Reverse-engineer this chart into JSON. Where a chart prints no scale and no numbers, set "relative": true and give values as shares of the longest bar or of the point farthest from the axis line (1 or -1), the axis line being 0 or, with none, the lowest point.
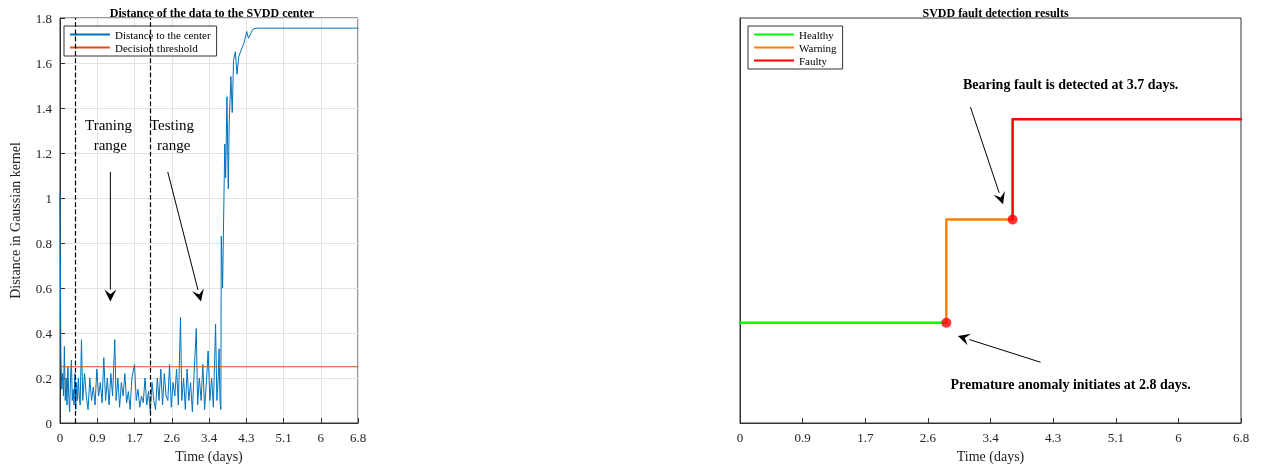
{
  "chart_data": [
    {
      "type": "line",
      "title": "Distance of the data to the SVDD center",
      "xlabel": "Time (days)",
      "ylabel": "Distance in Gaussian kernel",
      "series": [
        {
          "name": "Distance to the center",
          "color": "#0072bd",
          "x": [
            0,
            0.02,
            0.04,
            0.06,
            0.08,
            0.1,
            0.12,
            0.14,
            0.16,
            0.18,
            0.2,
            0.22,
            0.24,
            0.26,
            0.28,
            0.3,
            0.32,
            0.34,
            0.36,
            0.38,
            0.4,
            0.42,
            0.44,
            0.46,
            0.49,
            0.52,
            0.56,
            0.6,
            0.64,
            0.68,
            0.72,
            0.76,
            0.8,
            0.84,
            0.88,
            0.92,
            0.96,
            1.0,
            1.04,
            1.08,
            1.12,
            1.16,
            1.2,
            1.25,
            1.28,
            1.32,
            1.36,
            1.4,
            1.44,
            1.48,
            1.52,
            1.56,
            1.6,
            1.64,
            1.7,
            1.74,
            1.78,
            1.82,
            1.86,
            1.9,
            1.94,
            1.98,
            2.02,
            2.06,
            2.1,
            2.14,
            2.18,
            2.22,
            2.26,
            2.3,
            2.34,
            2.38,
            2.42,
            2.46,
            2.5,
            2.54,
            2.58,
            2.62,
            2.66,
            2.7,
            2.75,
            2.78,
            2.82,
            2.86,
            2.9,
            2.94,
            2.98,
            3.02,
            3.06,
            3.11,
            3.14,
            3.18,
            3.22,
            3.26,
            3.3,
            3.34,
            3.38,
            3.42,
            3.46,
            3.5,
            3.55,
            3.58,
            3.61,
            3.63,
            3.65,
            3.67,
            3.68,
            3.71,
            3.76,
            3.78,
            3.81,
            3.84,
            3.86,
            3.9,
            3.93,
            3.96,
            4.0,
            4.04,
            4.08,
            4.2,
            4.26,
            4.3,
            4.4,
            4.49,
            6.8
          ],
          "values": [
            1.02,
            0.3,
            0.15,
            0.22,
            0.12,
            0.34,
            0.1,
            0.2,
            0.08,
            0.25,
            0.12,
            0.05,
            0.2,
            0.28,
            0.1,
            0.15,
            0.08,
            0.22,
            0.06,
            0.18,
            0.1,
            0.2,
            0.12,
            0.08,
            0.37,
            0.1,
            0.22,
            0.12,
            0.06,
            0.2,
            0.1,
            0.16,
            0.08,
            0.24,
            0.12,
            0.18,
            0.09,
            0.29,
            0.1,
            0.2,
            0.08,
            0.22,
            0.12,
            0.37,
            0.1,
            0.2,
            0.07,
            0.18,
            0.12,
            0.22,
            0.09,
            0.14,
            0.06,
            0.2,
            0.26,
            0.1,
            0.15,
            0.07,
            0.12,
            0.09,
            0.2,
            0.08,
            0.14,
            0.05,
            0.18,
            0.1,
            0.06,
            0.2,
            0.1,
            0.24,
            0.08,
            0.22,
            0.12,
            0.1,
            0.26,
            0.07,
            0.18,
            0.12,
            0.24,
            0.08,
            0.47,
            0.1,
            0.2,
            0.06,
            0.24,
            0.1,
            0.18,
            0.05,
            0.22,
            0.42,
            0.08,
            0.2,
            0.1,
            0.26,
            0.06,
            0.18,
            0.32,
            0.1,
            0.2,
            0.07,
            0.44,
            0.1,
            0.2,
            0.33,
            0.1,
            0.06,
            0.83,
            0.6,
            1.24,
            1.09,
            1.45,
            1.04,
            1.33,
            1.54,
            1.38,
            1.61,
            1.65,
            1.55,
            1.63,
            1.69,
            1.74,
            1.71,
            1.75,
            1.755,
            1.755
          ]
        },
        {
          "name": "Decision threshold",
          "color": "#d95319",
          "x": [
            0,
            6.8
          ],
          "values": [
            0.25,
            0.25
          ]
        }
      ],
      "ref_lines": [
        {
          "axis": "x",
          "value": 0.34,
          "color": "#000000",
          "line_style": "dashed"
        },
        {
          "axis": "x",
          "value": 2.06,
          "color": "#000000",
          "line_style": "dashed"
        }
      ],
      "annotations": [
        "Traning range",
        "Testing range"
      ],
      "xlim": [
        0,
        6.8
      ],
      "xticks": [
        0,
        {
          "value": 0.85,
          "label": "0.9"
        },
        1.7,
        {
          "value": 2.55,
          "label": "2.6"
        },
        3.4,
        {
          "value": 4.25,
          "label": "4.3"
        },
        5.1,
        {
          "value": 5.95,
          "label": "6"
        },
        6.8
      ],
      "ylim": [
        0,
        1.8
      ],
      "yticks": [
        0,
        0.2,
        0.4,
        0.6,
        0.8,
        1,
        1.2,
        1.4,
        1.6,
        1.8
      ],
      "grid": true,
      "legend": "top left",
      "marker": "none",
      "line_style": "solid"
    },
    {
      "type": "line",
      "title": "SVDD fault detection results",
      "xlabel": "Time (days)",
      "relative": true,
      "tick_labels": "x",
      "series": [
        {
          "name": "Healthy",
          "color": "#00ff00",
          "x": [
            0,
            2.8
          ],
          "values": [
            0.33,
            0.33
          ]
        },
        {
          "name": "Warning",
          "color": "#ff8000",
          "x": [
            2.8,
            2.8,
            3.7
          ],
          "values": [
            0.33,
            0.67,
            0.67
          ]
        },
        {
          "name": "Faulty",
          "color": "#ff0000",
          "x": [
            3.7,
            3.7,
            6.8
          ],
          "values": [
            0.67,
            1,
            1
          ]
        },
        {
          "type": "scatter",
          "color": "#ff0000",
          "marker": "circle",
          "x": [
            2.8,
            3.7
          ],
          "values": [
            0.33,
            0.67
          ]
        }
      ],
      "annotations": [
        "Bearing fault is detected at 3.7 days.",
        "Premature anomaly initiates at 2.8 days."
      ],
      "xlim": [
        0,
        6.8
      ],
      "xticks": [
        0,
        {
          "value": 0.85,
          "label": "0.9"
        },
        1.7,
        {
          "value": 2.55,
          "label": "2.6"
        },
        3.4,
        {
          "value": 4.25,
          "label": "4.3"
        },
        5.1,
        {
          "value": 5.95,
          "label": "6"
        },
        6.8
      ],
      "grid": false,
      "legend": "top left",
      "line_style": "solid"
    }
  ]
}
